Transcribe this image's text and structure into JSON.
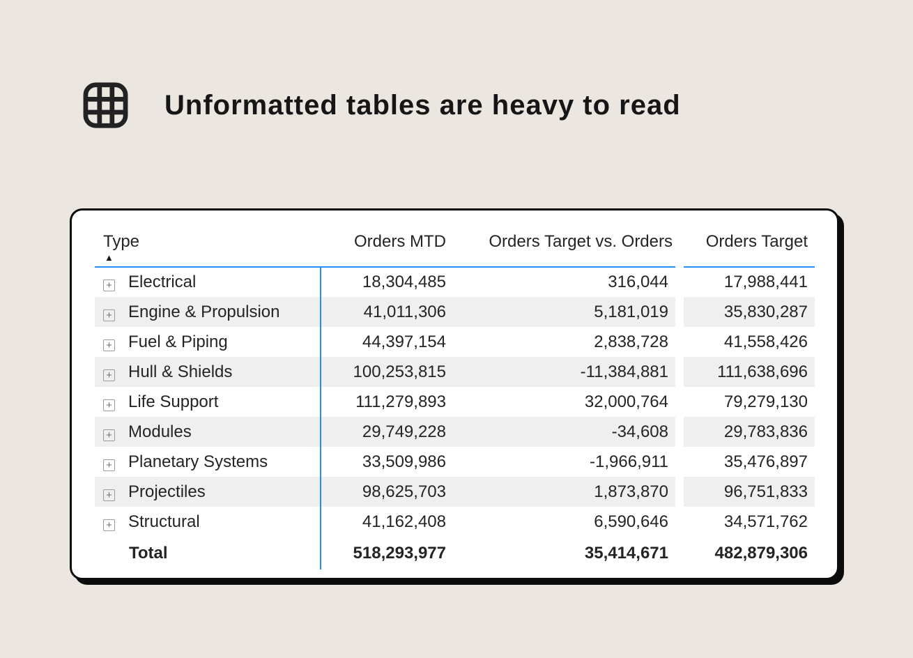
{
  "header": {
    "title": "Unformatted tables are heavy to read",
    "icon": "table-grid-icon"
  },
  "icons": {
    "sort_ascending": "▲",
    "expand": "+"
  },
  "colors": {
    "background": "#ebe6df",
    "card_background": "#ffffff",
    "card_border": "#0c0c0c",
    "accent_blue": "#1f8fff",
    "row_stripe": "#efefef",
    "text": "#252423"
  },
  "chart_data": {
    "type": "table",
    "columns": [
      "Type",
      "Orders MTD",
      "Orders Target vs. Orders",
      "Orders Target"
    ],
    "sort": {
      "column": "Type",
      "direction": "ascending"
    },
    "rows": [
      {
        "label": "Electrical",
        "values": [
          "18,304,485",
          "316,044",
          "17,988,441"
        ]
      },
      {
        "label": "Engine & Propulsion",
        "values": [
          "41,011,306",
          "5,181,019",
          "35,830,287"
        ]
      },
      {
        "label": "Fuel & Piping",
        "values": [
          "44,397,154",
          "2,838,728",
          "41,558,426"
        ]
      },
      {
        "label": "Hull & Shields",
        "values": [
          "100,253,815",
          "-11,384,881",
          "111,638,696"
        ]
      },
      {
        "label": "Life Support",
        "values": [
          "111,279,893",
          "32,000,764",
          "79,279,130"
        ]
      },
      {
        "label": "Modules",
        "values": [
          "29,749,228",
          "-34,608",
          "29,783,836"
        ]
      },
      {
        "label": "Planetary Systems",
        "values": [
          "33,509,986",
          "-1,966,911",
          "35,476,897"
        ]
      },
      {
        "label": "Projectiles",
        "values": [
          "98,625,703",
          "1,873,870",
          "96,751,833"
        ]
      },
      {
        "label": "Structural",
        "values": [
          "41,162,408",
          "6,590,646",
          "34,571,762"
        ]
      }
    ],
    "total": {
      "label": "Total",
      "values": [
        "518,293,977",
        "35,414,671",
        "482,879,306"
      ]
    }
  }
}
